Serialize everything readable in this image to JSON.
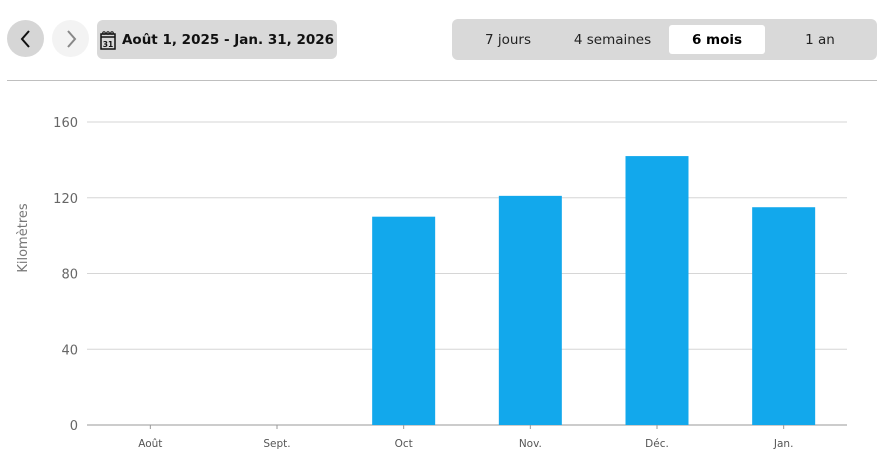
{
  "toolbar": {
    "prev_icon": "chevron-left-icon",
    "next_icon": "chevron-right-icon",
    "calendar_icon": "calendar-icon",
    "calendar_day": "31",
    "date_range": "Août 1, 2025 - Jan. 31, 2026"
  },
  "periods": [
    {
      "label": "7 jours",
      "active": false
    },
    {
      "label": "4 semaines",
      "active": false
    },
    {
      "label": "6 mois",
      "active": true
    },
    {
      "label": "1 an",
      "active": false
    }
  ],
  "chart_data": {
    "type": "bar",
    "categories": [
      "Août",
      "Sept.",
      "Oct",
      "Nov.",
      "Déc.",
      "Jan."
    ],
    "values": [
      0,
      0,
      110,
      121,
      142,
      115
    ],
    "ylabel": "Kilomètres",
    "xlabel": "",
    "ylim": [
      0,
      160
    ],
    "yticks": [
      0,
      40,
      80,
      120,
      160
    ],
    "grid": true,
    "bar_color": "#12a8ec"
  }
}
